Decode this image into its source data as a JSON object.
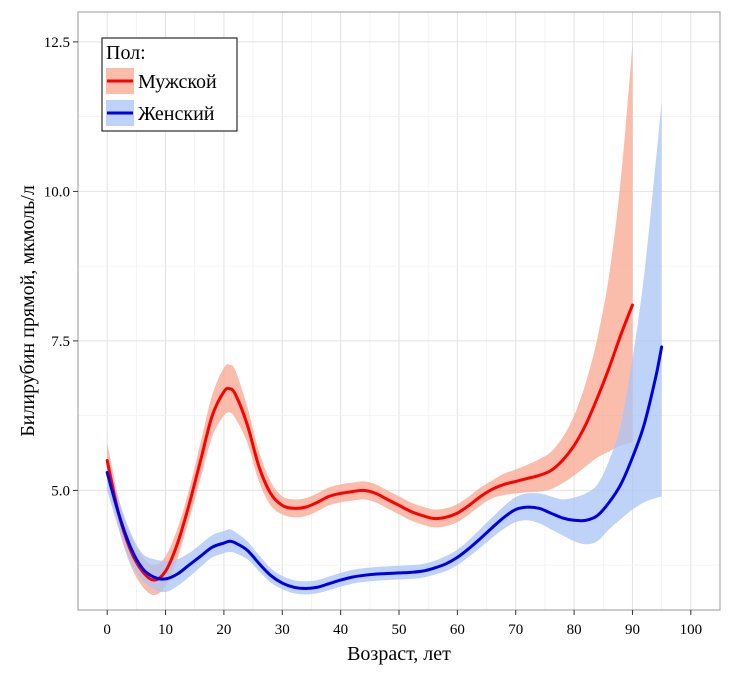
{
  "chart_data": {
    "type": "line",
    "xlabel": "Возраст, лет",
    "ylabel": "Билирубин прямой, мкмоль/л",
    "xlim": [
      -5,
      105
    ],
    "ylim": [
      3.0,
      13.0
    ],
    "x_ticks": [
      0,
      10,
      20,
      30,
      40,
      50,
      60,
      70,
      80,
      90,
      100
    ],
    "y_ticks": [
      5.0,
      7.5,
      10.0,
      12.5
    ],
    "y_tick_labels": [
      "5.0",
      "7.5",
      "10.0",
      "12.5"
    ],
    "grid": true,
    "legend": {
      "title": "Пол:",
      "placement": "top-left"
    },
    "series": [
      {
        "name": "Мужской",
        "color": "#ff0000",
        "band_color": "#f8a78f",
        "points": [
          [
            0,
            5.5,
            5.2,
            5.8
          ],
          [
            2,
            4.6,
            4.35,
            4.85
          ],
          [
            4,
            4.0,
            3.75,
            4.25
          ],
          [
            6,
            3.65,
            3.4,
            3.9
          ],
          [
            8,
            3.5,
            3.25,
            3.75
          ],
          [
            10,
            3.65,
            3.4,
            3.9
          ],
          [
            12,
            4.1,
            3.85,
            4.35
          ],
          [
            14,
            4.75,
            4.5,
            5.0
          ],
          [
            16,
            5.5,
            5.2,
            5.8
          ],
          [
            18,
            6.25,
            5.9,
            6.6
          ],
          [
            20,
            6.65,
            6.25,
            7.05
          ],
          [
            21,
            6.7,
            6.3,
            7.1
          ],
          [
            22,
            6.6,
            6.2,
            7.0
          ],
          [
            24,
            6.1,
            5.8,
            6.4
          ],
          [
            26,
            5.4,
            5.15,
            5.65
          ],
          [
            28,
            4.95,
            4.75,
            5.15
          ],
          [
            30,
            4.75,
            4.6,
            4.9
          ],
          [
            32,
            4.7,
            4.55,
            4.85
          ],
          [
            34,
            4.72,
            4.57,
            4.87
          ],
          [
            36,
            4.8,
            4.65,
            4.95
          ],
          [
            38,
            4.9,
            4.75,
            5.05
          ],
          [
            40,
            4.95,
            4.8,
            5.1
          ],
          [
            42,
            4.98,
            4.83,
            5.13
          ],
          [
            44,
            5.0,
            4.85,
            5.15
          ],
          [
            46,
            4.95,
            4.8,
            5.1
          ],
          [
            48,
            4.85,
            4.7,
            5.0
          ],
          [
            50,
            4.75,
            4.6,
            4.9
          ],
          [
            52,
            4.65,
            4.5,
            4.8
          ],
          [
            54,
            4.58,
            4.43,
            4.73
          ],
          [
            56,
            4.53,
            4.38,
            4.68
          ],
          [
            58,
            4.55,
            4.4,
            4.7
          ],
          [
            60,
            4.62,
            4.47,
            4.77
          ],
          [
            62,
            4.75,
            4.6,
            4.9
          ],
          [
            64,
            4.9,
            4.75,
            5.05
          ],
          [
            66,
            5.02,
            4.87,
            5.17
          ],
          [
            68,
            5.1,
            4.92,
            5.28
          ],
          [
            70,
            5.15,
            4.95,
            5.35
          ],
          [
            72,
            5.2,
            4.97,
            5.43
          ],
          [
            74,
            5.25,
            4.98,
            5.52
          ],
          [
            76,
            5.33,
            5.02,
            5.64
          ],
          [
            78,
            5.5,
            5.12,
            5.88
          ],
          [
            80,
            5.75,
            5.25,
            6.25
          ],
          [
            82,
            6.1,
            5.4,
            6.8
          ],
          [
            84,
            6.55,
            5.55,
            7.55
          ],
          [
            86,
            7.05,
            5.65,
            8.6
          ],
          [
            88,
            7.6,
            5.75,
            10.2
          ],
          [
            90,
            8.1,
            5.8,
            12.45
          ]
        ]
      },
      {
        "name": "Женский",
        "color": "#0000e0",
        "band_color": "#a9c4f6",
        "points": [
          [
            0,
            5.3,
            5.0,
            5.6
          ],
          [
            2,
            4.6,
            4.35,
            4.85
          ],
          [
            4,
            4.05,
            3.8,
            4.3
          ],
          [
            6,
            3.7,
            3.5,
            3.95
          ],
          [
            8,
            3.55,
            3.35,
            3.85
          ],
          [
            10,
            3.52,
            3.3,
            3.82
          ],
          [
            12,
            3.6,
            3.4,
            3.85
          ],
          [
            14,
            3.75,
            3.55,
            3.95
          ],
          [
            16,
            3.9,
            3.72,
            4.1
          ],
          [
            18,
            4.05,
            3.88,
            4.25
          ],
          [
            20,
            4.12,
            3.95,
            4.32
          ],
          [
            21,
            4.15,
            3.97,
            4.35
          ],
          [
            22,
            4.12,
            3.95,
            4.3
          ],
          [
            24,
            4.0,
            3.85,
            4.15
          ],
          [
            26,
            3.78,
            3.65,
            3.92
          ],
          [
            28,
            3.58,
            3.46,
            3.7
          ],
          [
            30,
            3.45,
            3.35,
            3.57
          ],
          [
            32,
            3.38,
            3.28,
            3.5
          ],
          [
            34,
            3.36,
            3.26,
            3.48
          ],
          [
            36,
            3.38,
            3.28,
            3.5
          ],
          [
            38,
            3.44,
            3.33,
            3.56
          ],
          [
            40,
            3.5,
            3.39,
            3.62
          ],
          [
            42,
            3.55,
            3.44,
            3.67
          ],
          [
            44,
            3.58,
            3.47,
            3.7
          ],
          [
            46,
            3.6,
            3.49,
            3.72
          ],
          [
            48,
            3.61,
            3.5,
            3.73
          ],
          [
            50,
            3.62,
            3.51,
            3.74
          ],
          [
            52,
            3.63,
            3.52,
            3.75
          ],
          [
            54,
            3.65,
            3.54,
            3.77
          ],
          [
            56,
            3.7,
            3.59,
            3.82
          ],
          [
            58,
            3.77,
            3.65,
            3.9
          ],
          [
            60,
            3.88,
            3.75,
            4.01
          ],
          [
            62,
            4.03,
            3.89,
            4.17
          ],
          [
            64,
            4.2,
            4.05,
            4.36
          ],
          [
            66,
            4.38,
            4.21,
            4.55
          ],
          [
            68,
            4.55,
            4.36,
            4.74
          ],
          [
            70,
            4.68,
            4.47,
            4.89
          ],
          [
            72,
            4.72,
            4.5,
            4.95
          ],
          [
            74,
            4.7,
            4.45,
            4.95
          ],
          [
            76,
            4.62,
            4.35,
            4.9
          ],
          [
            78,
            4.54,
            4.25,
            4.85
          ],
          [
            80,
            4.5,
            4.15,
            4.88
          ],
          [
            82,
            4.5,
            4.1,
            4.95
          ],
          [
            84,
            4.58,
            4.15,
            5.1
          ],
          [
            86,
            4.8,
            4.35,
            5.5
          ],
          [
            88,
            5.1,
            4.52,
            6.1
          ],
          [
            90,
            5.55,
            4.68,
            7.2
          ],
          [
            92,
            6.1,
            4.8,
            8.6
          ],
          [
            94,
            6.9,
            4.87,
            10.5
          ],
          [
            95,
            7.4,
            4.9,
            11.5
          ]
        ]
      }
    ]
  }
}
